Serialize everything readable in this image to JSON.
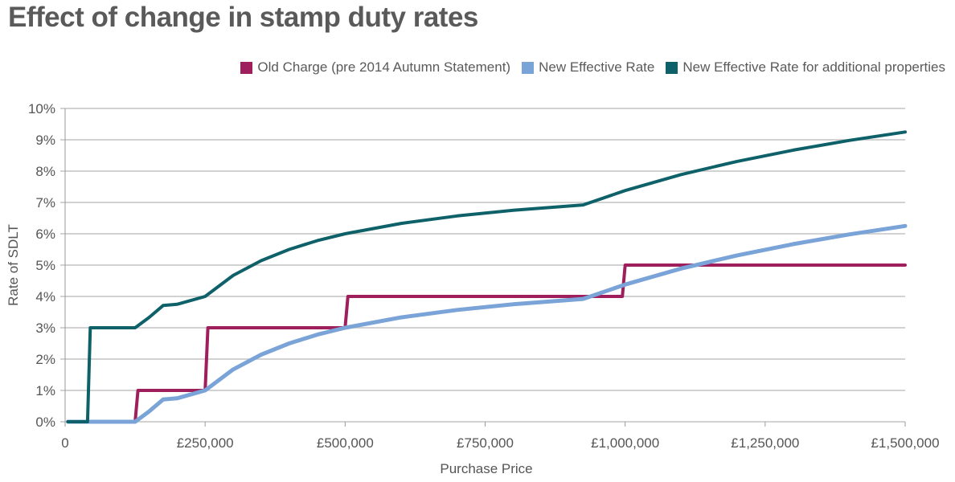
{
  "chart_data": {
    "type": "line",
    "title": "Effect of change in stamp duty rates",
    "xlabel": "Purchase Price",
    "ylabel": "Rate of SDLT",
    "xlim": [
      0,
      1500000
    ],
    "ylim": [
      0,
      10
    ],
    "x_ticks": [
      0,
      250000,
      500000,
      750000,
      1000000,
      1250000,
      1500000
    ],
    "x_tick_labels": [
      "0",
      "£250,000",
      "£500,000",
      "£750,000",
      "£1,000,000",
      "£1,250,000",
      "£1,500,000"
    ],
    "y_ticks": [
      0,
      1,
      2,
      3,
      4,
      5,
      6,
      7,
      8,
      9,
      10
    ],
    "y_tick_labels": [
      "0%",
      "1%",
      "2%",
      "3%",
      "4%",
      "5%",
      "6%",
      "7%",
      "8%",
      "9%",
      "10%"
    ],
    "grid": true,
    "legend_position": "top-right",
    "series": [
      {
        "name": "Old Charge (pre 2014 Autumn Statement)",
        "color": "#9e1f5c",
        "points": [
          [
            5000,
            0
          ],
          [
            125000,
            0
          ],
          [
            130000,
            1
          ],
          [
            250000,
            1
          ],
          [
            255000,
            3
          ],
          [
            500000,
            3
          ],
          [
            505000,
            4
          ],
          [
            995000,
            4
          ],
          [
            1000000,
            5
          ],
          [
            1500000,
            5
          ]
        ]
      },
      {
        "name": "New Effective Rate",
        "color": "#7aa3d8",
        "points": [
          [
            5000,
            0
          ],
          [
            125000,
            0
          ],
          [
            150000,
            0.33
          ],
          [
            175000,
            0.71
          ],
          [
            200000,
            0.75
          ],
          [
            250000,
            1.0
          ],
          [
            300000,
            1.67
          ],
          [
            350000,
            2.14
          ],
          [
            400000,
            2.5
          ],
          [
            450000,
            2.78
          ],
          [
            500000,
            3.0
          ],
          [
            600000,
            3.33
          ],
          [
            700000,
            3.57
          ],
          [
            800000,
            3.75
          ],
          [
            925000,
            3.92
          ],
          [
            1000000,
            4.38
          ],
          [
            1100000,
            4.89
          ],
          [
            1200000,
            5.31
          ],
          [
            1300000,
            5.67
          ],
          [
            1400000,
            5.98
          ],
          [
            1500000,
            6.25
          ]
        ]
      },
      {
        "name": "New Effective Rate for additional properties",
        "color": "#0f6169",
        "points": [
          [
            5000,
            0
          ],
          [
            40000,
            0
          ],
          [
            45000,
            3
          ],
          [
            125000,
            3
          ],
          [
            150000,
            3.33
          ],
          [
            175000,
            3.71
          ],
          [
            200000,
            3.75
          ],
          [
            250000,
            4.0
          ],
          [
            300000,
            4.67
          ],
          [
            350000,
            5.14
          ],
          [
            400000,
            5.5
          ],
          [
            450000,
            5.78
          ],
          [
            500000,
            6.0
          ],
          [
            600000,
            6.33
          ],
          [
            700000,
            6.57
          ],
          [
            800000,
            6.75
          ],
          [
            925000,
            6.92
          ],
          [
            1000000,
            7.38
          ],
          [
            1100000,
            7.89
          ],
          [
            1200000,
            8.31
          ],
          [
            1300000,
            8.67
          ],
          [
            1400000,
            8.98
          ],
          [
            1500000,
            9.25
          ]
        ]
      }
    ]
  }
}
